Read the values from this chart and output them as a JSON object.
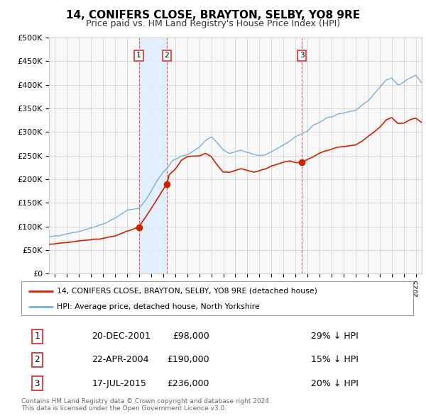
{
  "title": "14, CONIFERS CLOSE, BRAYTON, SELBY, YO8 9RE",
  "subtitle": "Price paid vs. HM Land Registry's House Price Index (HPI)",
  "ytick_values": [
    0,
    50000,
    100000,
    150000,
    200000,
    250000,
    300000,
    350000,
    400000,
    450000,
    500000
  ],
  "ylim": [
    0,
    500000
  ],
  "xlim_start": 1994.5,
  "xlim_end": 2025.5,
  "sale_times": [
    2001.97,
    2004.3,
    2015.54
  ],
  "sale_prices": [
    98000,
    190000,
    236000
  ],
  "sale_labels": [
    "1",
    "2",
    "3"
  ],
  "hpi_color": "#7ab0d4",
  "hpi_fill_color": "#ddeeff",
  "price_color": "#cc2200",
  "vline_color": "#dd3333",
  "grid_color": "#cccccc",
  "bg_color": "#ffffff",
  "plot_bg_color": "#f8f8f8",
  "legend_label_price": "14, CONIFERS CLOSE, BRAYTON, SELBY, YO8 9RE (detached house)",
  "legend_label_hpi": "HPI: Average price, detached house, North Yorkshire",
  "footer": "Contains HM Land Registry data © Crown copyright and database right 2024.\nThis data is licensed under the Open Government Licence v3.0.",
  "table_rows": [
    [
      "1",
      "20-DEC-2001",
      "£98,000",
      "29% ↓ HPI"
    ],
    [
      "2",
      "22-APR-2004",
      "£190,000",
      "15% ↓ HPI"
    ],
    [
      "3",
      "17-JUL-2015",
      "£236,000",
      "20% ↓ HPI"
    ]
  ],
  "hpi_anchors_t": [
    1994.5,
    1995.0,
    1996.0,
    1997.0,
    1998.0,
    1999.0,
    2000.0,
    2001.0,
    2001.97,
    2002.5,
    2003.0,
    2003.5,
    2004.0,
    2004.3,
    2004.8,
    2005.5,
    2006.0,
    2006.5,
    2007.0,
    2007.5,
    2008.0,
    2008.5,
    2009.0,
    2009.5,
    2010.0,
    2010.5,
    2011.0,
    2011.5,
    2012.0,
    2012.5,
    2013.0,
    2013.5,
    2014.0,
    2014.5,
    2015.0,
    2015.54,
    2016.0,
    2016.5,
    2017.0,
    2017.5,
    2018.0,
    2018.5,
    2019.0,
    2019.5,
    2020.0,
    2020.5,
    2021.0,
    2021.5,
    2022.0,
    2022.5,
    2023.0,
    2023.5,
    2024.0,
    2024.5,
    2025.0,
    2025.5
  ],
  "hpi_anchors_v": [
    77000,
    80000,
    85000,
    90000,
    97000,
    105000,
    118000,
    135000,
    138000,
    155000,
    175000,
    198000,
    215000,
    222000,
    240000,
    248000,
    252000,
    260000,
    268000,
    280000,
    290000,
    278000,
    262000,
    255000,
    258000,
    262000,
    258000,
    253000,
    250000,
    252000,
    258000,
    265000,
    272000,
    280000,
    290000,
    297000,
    303000,
    315000,
    320000,
    328000,
    332000,
    338000,
    340000,
    344000,
    346000,
    355000,
    365000,
    380000,
    395000,
    410000,
    415000,
    400000,
    405000,
    415000,
    420000,
    405000
  ],
  "price_anchors_t": [
    1994.5,
    1995.0,
    1996.0,
    1997.0,
    1998.0,
    1999.0,
    2000.0,
    2001.0,
    2001.97,
    2004.3,
    2004.5,
    2005.0,
    2005.5,
    2006.0,
    2007.0,
    2007.5,
    2008.0,
    2008.5,
    2009.0,
    2009.5,
    2010.0,
    2010.5,
    2011.0,
    2011.5,
    2012.0,
    2012.5,
    2013.0,
    2013.5,
    2014.0,
    2014.5,
    2015.0,
    2015.54,
    2016.0,
    2016.5,
    2017.0,
    2017.5,
    2018.0,
    2018.5,
    2019.0,
    2019.5,
    2020.0,
    2020.5,
    2021.0,
    2021.5,
    2022.0,
    2022.5,
    2023.0,
    2023.5,
    2024.0,
    2024.5,
    2025.0,
    2025.5
  ],
  "price_anchors_v": [
    62000,
    64000,
    67000,
    70000,
    72000,
    75000,
    80000,
    90000,
    98000,
    190000,
    210000,
    222000,
    240000,
    248000,
    250000,
    255000,
    248000,
    230000,
    215000,
    215000,
    220000,
    222000,
    218000,
    215000,
    218000,
    222000,
    228000,
    232000,
    236000,
    238000,
    236000,
    236000,
    242000,
    248000,
    255000,
    260000,
    263000,
    267000,
    268000,
    271000,
    272000,
    280000,
    290000,
    300000,
    310000,
    325000,
    330000,
    318000,
    320000,
    326000,
    330000,
    320000
  ]
}
